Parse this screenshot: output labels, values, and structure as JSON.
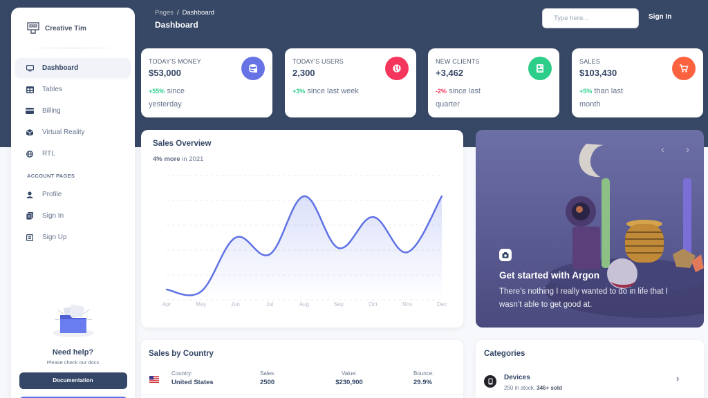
{
  "brand": {
    "name": "Creative Tim"
  },
  "sidebar": {
    "items": [
      {
        "label": "Dashboard",
        "icon": "desktop-icon",
        "active": true
      },
      {
        "label": "Tables",
        "icon": "calendar-icon"
      },
      {
        "label": "Billing",
        "icon": "credit-card-icon"
      },
      {
        "label": "Virtual Reality",
        "icon": "box-icon"
      },
      {
        "label": "RTL",
        "icon": "globe-icon"
      }
    ],
    "section_label": "ACCOUNT PAGES",
    "account_items": [
      {
        "label": "Profile",
        "icon": "user-icon"
      },
      {
        "label": "Sign In",
        "icon": "document-icon"
      },
      {
        "label": "Sign Up",
        "icon": "collection-icon"
      }
    ],
    "help": {
      "title": "Need help?",
      "subtitle": "Please check our docs",
      "doc_button": "Documentation"
    }
  },
  "header": {
    "breadcrumb_parent": "Pages",
    "breadcrumb_sep": "/",
    "breadcrumb_current": "Dashboard",
    "title": "Dashboard",
    "search_placeholder": "Type here...",
    "signin_label": "Sign In"
  },
  "stats": [
    {
      "label": "TODAY'S MONEY",
      "value": "$53,000",
      "change": "+55%",
      "change_text": " since yesterday",
      "trend": "positive",
      "icon": "money-icon",
      "color": "#6772e5"
    },
    {
      "label": "TODAY'S USERS",
      "value": "2,300",
      "change": "+3%",
      "change_text": " since last week",
      "trend": "positive",
      "icon": "world-icon",
      "color": "#f5365c"
    },
    {
      "label": "NEW CLIENTS",
      "value": "+3,462",
      "change": "-2%",
      "change_text": " since last quarter",
      "trend": "negative",
      "icon": "paper-icon",
      "color": "#2dce89"
    },
    {
      "label": "SALES",
      "value": "$103,430",
      "change": "+5%",
      "change_text": " than last month",
      "trend": "positive",
      "icon": "cart-icon",
      "color": "#fb6340"
    }
  ],
  "overview": {
    "title": "Sales Overview",
    "sub_bold": "4% more",
    "sub_text": " in 2021"
  },
  "chart_data": {
    "type": "line",
    "categories": [
      "Apr",
      "May",
      "Jun",
      "Jul",
      "Aug",
      "Sep",
      "Oct",
      "Nov",
      "Dec"
    ],
    "values": [
      50,
      40,
      300,
      220,
      500,
      250,
      400,
      230,
      500
    ],
    "ylim": [
      0,
      600
    ],
    "color": "#5e72e4",
    "grid": true
  },
  "carousel": {
    "title": "Get started with Argon",
    "text": "There’s nothing I really wanted to do in life that I wasn’t able to get good at.",
    "prev": "‹",
    "next": "›"
  },
  "country": {
    "title": "Sales by Country",
    "rows": [
      {
        "country_label": "Country:",
        "country": "United States",
        "sales_label": "Sales:",
        "sales": "2500",
        "value_label": "Value:",
        "value": "$230,900",
        "bounce_label": "Bounce:",
        "bounce": "29.9%"
      }
    ]
  },
  "categories": {
    "title": "Categories",
    "items": [
      {
        "name": "Devices",
        "stock": "250 in stock, ",
        "sold": "346+ sold",
        "icon": "mobile-icon",
        "arrow": "›"
      }
    ]
  }
}
